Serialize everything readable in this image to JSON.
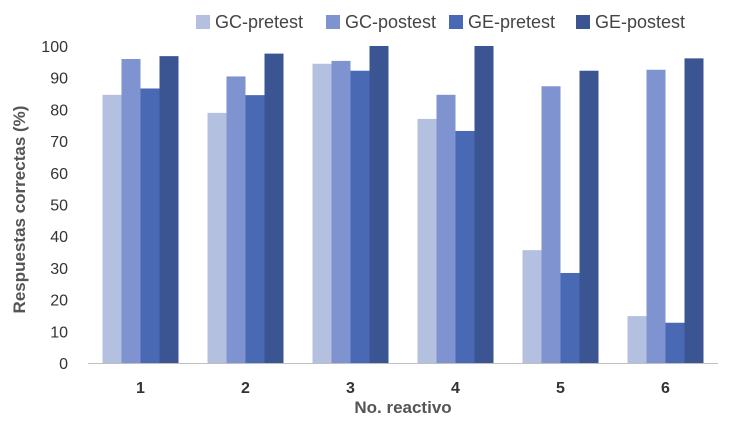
{
  "chart_data": {
    "type": "bar",
    "xlabel": "No. reactivo",
    "ylabel": "Respuestas correctas (%)",
    "ylim": [
      0,
      100
    ],
    "ytick_step": 10,
    "grid": false,
    "legend_position": "top",
    "categories": [
      "1",
      "2",
      "3",
      "4",
      "5",
      "6"
    ],
    "series": [
      {
        "name": "GC-pretest",
        "color": "#b4c0e0",
        "values": [
          84.6,
          78.9,
          94.4,
          77.0,
          35.6,
          14.8
        ]
      },
      {
        "name": "GC-postest",
        "color": "#7e93cf",
        "values": [
          95.9,
          90.4,
          95.3,
          84.6,
          87.3,
          92.5
        ]
      },
      {
        "name": "GE-pretest",
        "color": "#4a69b5",
        "values": [
          86.6,
          84.5,
          92.2,
          73.2,
          28.4,
          12.7
        ]
      },
      {
        "name": "GE-postest",
        "color": "#3a5592",
        "values": [
          96.8,
          97.6,
          100,
          100,
          92.2,
          96.1
        ]
      }
    ]
  }
}
